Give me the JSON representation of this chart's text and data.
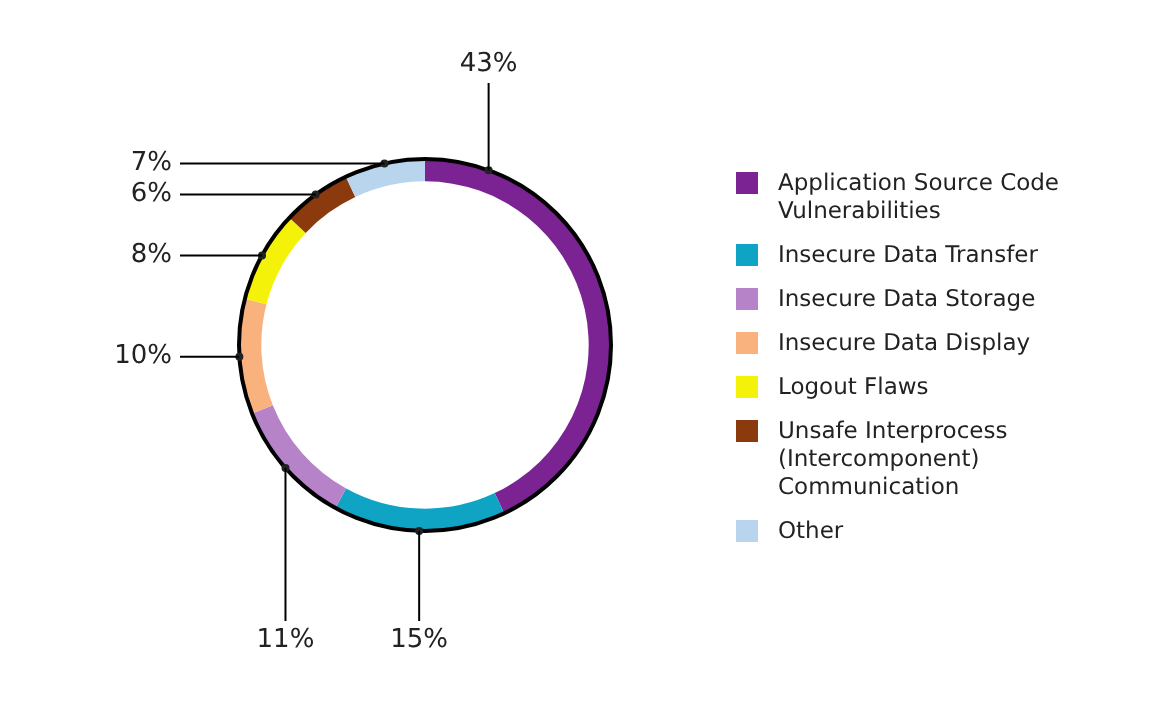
{
  "chart_data": {
    "type": "donut",
    "categories": [
      "Application Source Code Vulnerabilities",
      "Insecure Data Transfer",
      "Insecure Data Storage",
      "Insecure Data Display",
      "Logout Flaws",
      "Unsafe Interprocess (Intercomponent) Communication",
      "Other"
    ],
    "values": [
      43,
      15,
      11,
      10,
      8,
      6,
      7
    ],
    "colors": [
      "#7b2393",
      "#0fa3c4",
      "#b682c8",
      "#f9b27d",
      "#f5f20a",
      "#8b3a0d",
      "#b9d5ee"
    ],
    "value_labels": [
      "43%",
      "15%",
      "11%",
      "10%",
      "8%",
      "6%",
      "7%"
    ],
    "legend": "right"
  }
}
